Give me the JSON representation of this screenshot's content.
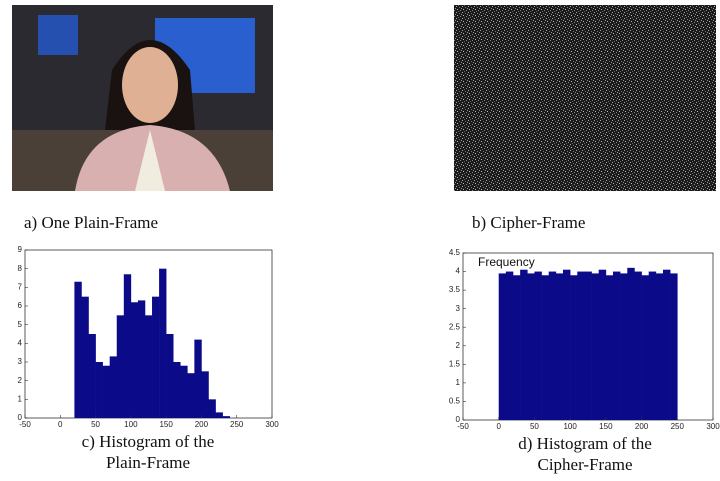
{
  "figure": {
    "panels": [
      {
        "caption": "a) One Plain-Frame"
      },
      {
        "caption": "b) Cipher-Frame"
      }
    ]
  },
  "chart_data": [
    {
      "type": "histogram",
      "caption": [
        "c) Histogram of the",
        "Plain-Frame"
      ],
      "bins": [
        20,
        30,
        40,
        50,
        60,
        70,
        80,
        90,
        100,
        110,
        120,
        130,
        140,
        150,
        160,
        170,
        180,
        190,
        200,
        210,
        220,
        230,
        240
      ],
      "values": [
        7.3,
        6.5,
        4.5,
        3.0,
        2.8,
        3.3,
        5.5,
        7.7,
        6.2,
        6.3,
        5.5,
        6.5,
        8.0,
        4.5,
        3.0,
        2.8,
        2.4,
        4.2,
        2.5,
        1.0,
        0.3,
        0.1
      ],
      "color": "#0b0b8a",
      "xlim": [
        -50,
        300
      ],
      "ylim": [
        0,
        9
      ],
      "xticks": [
        -50,
        0,
        50,
        100,
        150,
        200,
        250,
        300
      ],
      "yticks": [
        0,
        1,
        2,
        3,
        4,
        5,
        6,
        7,
        8,
        9
      ]
    },
    {
      "type": "histogram",
      "caption": [
        "d) Histogram of the",
        "Cipher-Frame"
      ],
      "annotation": "Frequency",
      "bins": [
        0,
        10,
        20,
        30,
        40,
        50,
        60,
        70,
        80,
        90,
        100,
        110,
        120,
        130,
        140,
        150,
        160,
        170,
        180,
        190,
        200,
        210,
        220,
        230,
        240,
        250
      ],
      "values": [
        3.95,
        4.0,
        3.9,
        4.05,
        3.95,
        4.0,
        3.9,
        4.0,
        3.95,
        4.05,
        3.9,
        4.0,
        4.0,
        3.95,
        4.05,
        3.9,
        4.0,
        3.95,
        4.1,
        4.0,
        3.9,
        4.0,
        3.95,
        4.05,
        3.95
      ],
      "color": "#0b0b8a",
      "xlim": [
        -50,
        300
      ],
      "ylim": [
        0,
        4.5
      ],
      "xticks": [
        -50,
        0,
        50,
        100,
        150,
        200,
        250,
        300
      ],
      "yticks": [
        0,
        0.5,
        1,
        1.5,
        2,
        2.5,
        3,
        3.5,
        4,
        4.5
      ]
    }
  ]
}
